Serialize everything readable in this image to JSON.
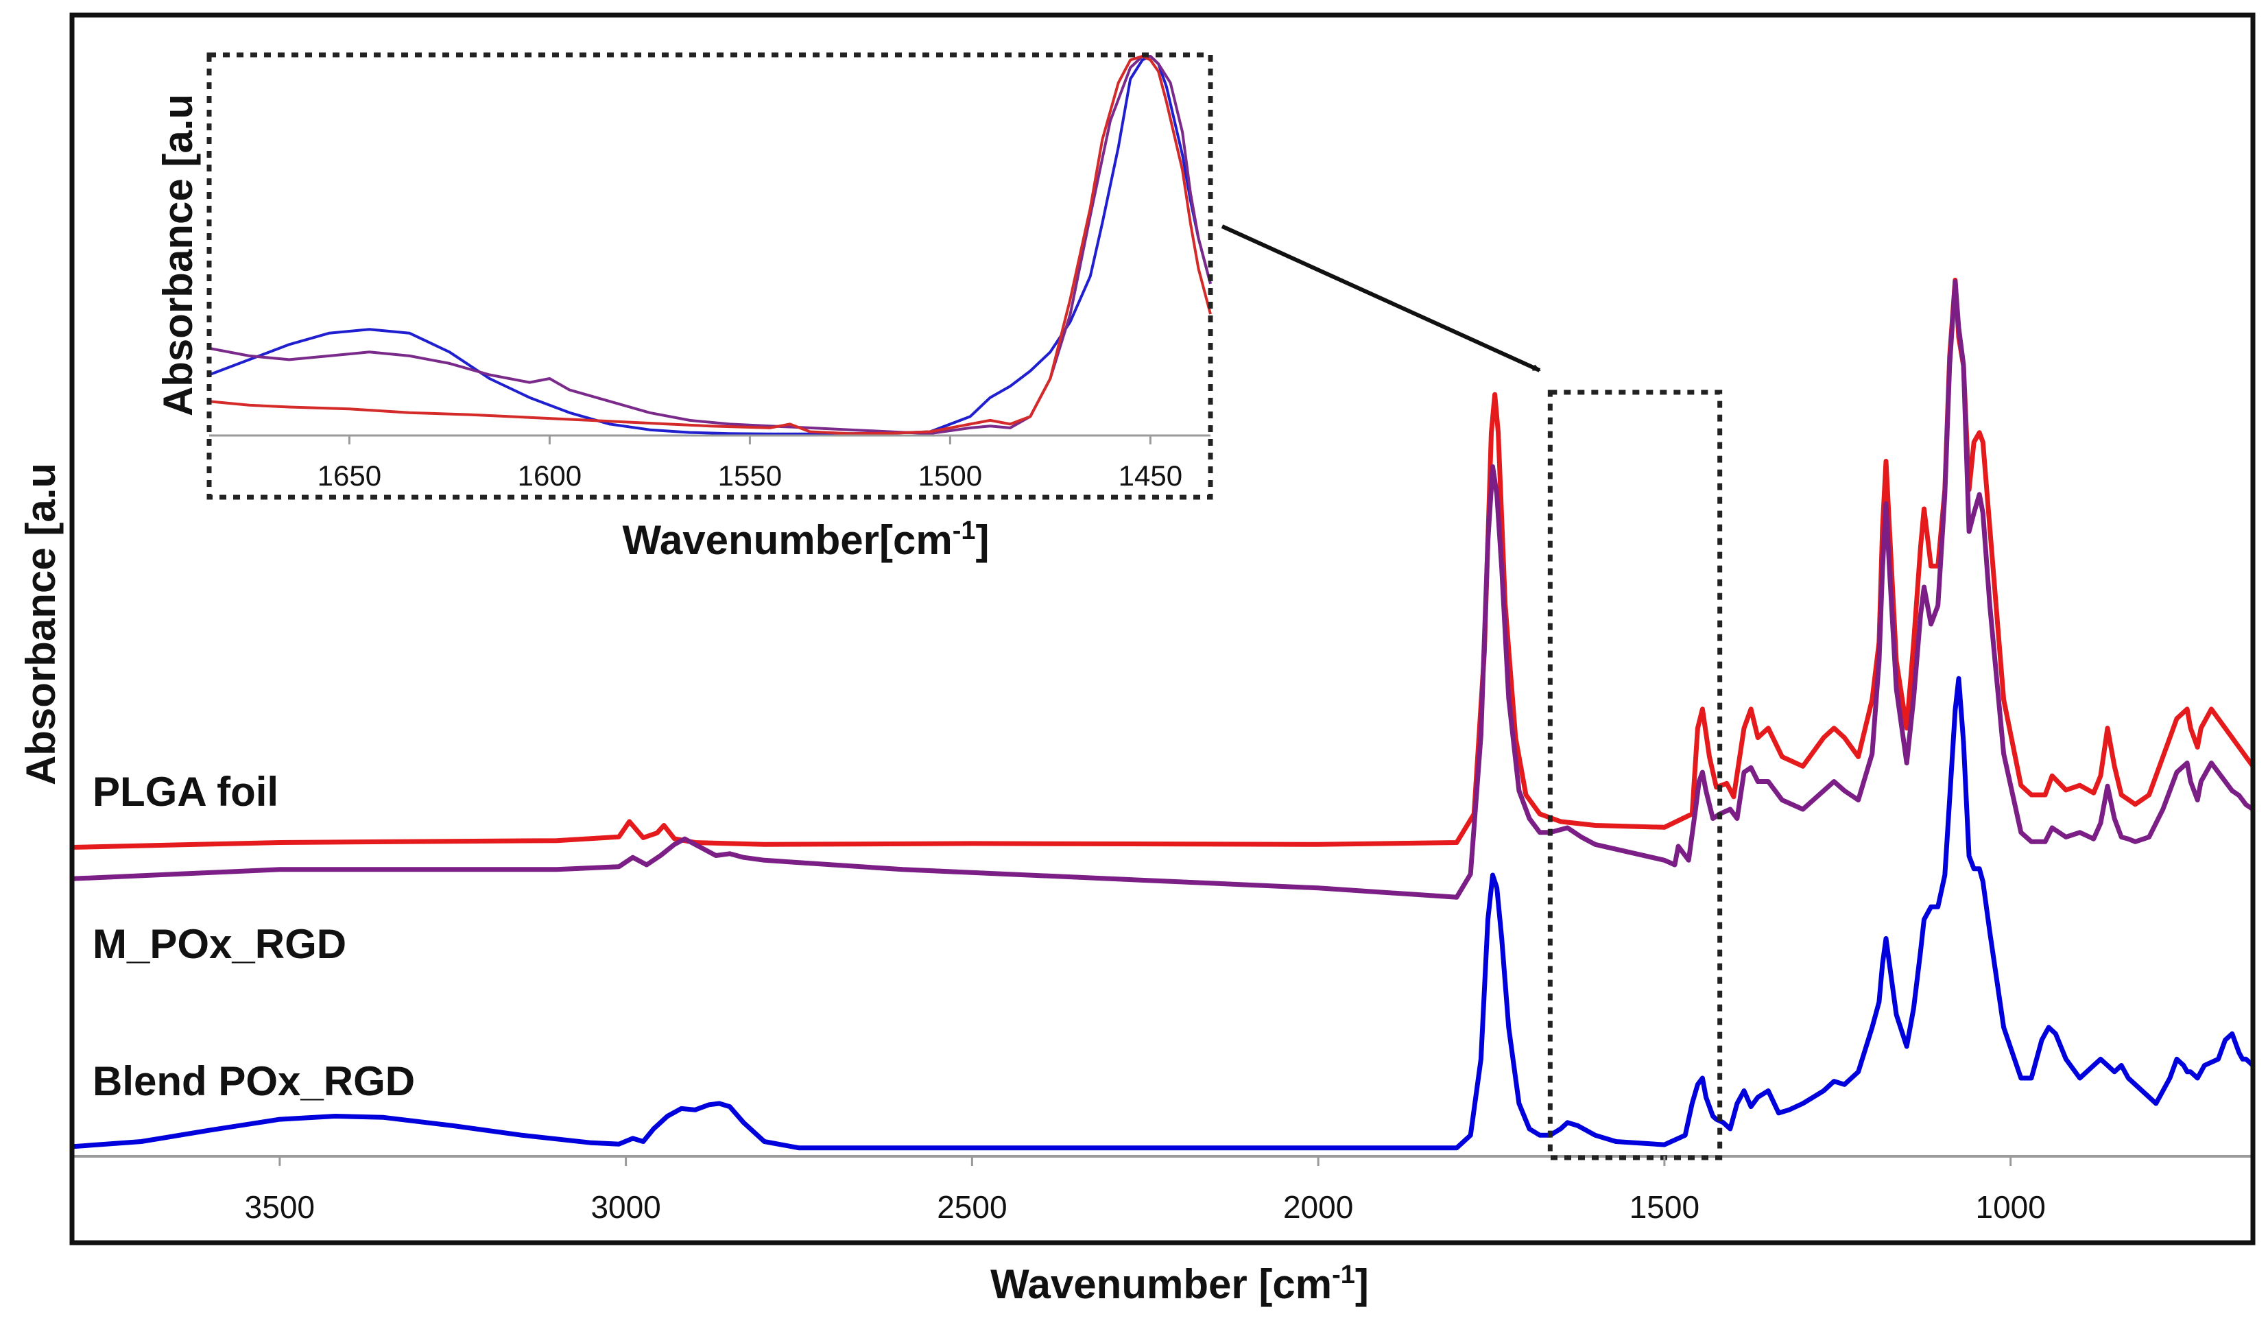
{
  "chart_data": [
    {
      "type": "line",
      "panel": "main",
      "title": "",
      "xlabel": "Wavenumber [cm",
      "xlabel_sup": "-1",
      "xlabel_end": "]",
      "ylabel": "Absorbance [a.u",
      "xlim": [
        3800,
        650
      ],
      "ylim": [
        0,
        1
      ],
      "x_reversed": true,
      "xticks": [
        3500,
        3000,
        2500,
        2000,
        1500,
        1000
      ],
      "xtick_labels": [
        "3500",
        "3000",
        "2500",
        "2000",
        "1500",
        "1000"
      ],
      "highlight_region": [
        1665,
        1420
      ],
      "legend": "inline labels left",
      "series": [
        {
          "name": "PLGA foil",
          "color": "#e41a1c",
          "x": [
            3800,
            3500,
            3100,
            3010,
            2995,
            2975,
            2955,
            2945,
            2930,
            2900,
            2800,
            2500,
            2000,
            1800,
            1775,
            1760,
            1750,
            1745,
            1740,
            1730,
            1715,
            1700,
            1680,
            1650,
            1600,
            1500,
            1460,
            1452,
            1445,
            1435,
            1425,
            1410,
            1400,
            1385,
            1375,
            1365,
            1350,
            1330,
            1300,
            1270,
            1255,
            1240,
            1220,
            1200,
            1190,
            1185,
            1180,
            1175,
            1165,
            1150,
            1140,
            1130,
            1125,
            1115,
            1105,
            1095,
            1088,
            1080,
            1075,
            1068,
            1060,
            1053,
            1045,
            1040,
            1030,
            1010,
            985,
            970,
            950,
            940,
            920,
            900,
            880,
            870,
            860,
            850,
            840,
            830,
            820,
            800,
            780,
            760,
            745,
            740,
            730,
            725,
            710,
            700,
            690,
            680,
            670,
            660,
            650
          ],
          "y": [
            0.345,
            0.35,
            0.352,
            0.356,
            0.372,
            0.355,
            0.36,
            0.368,
            0.354,
            0.35,
            0.348,
            0.349,
            0.348,
            0.35,
            0.38,
            0.55,
            0.78,
            0.82,
            0.78,
            0.6,
            0.46,
            0.4,
            0.38,
            0.372,
            0.368,
            0.366,
            0.38,
            0.47,
            0.49,
            0.44,
            0.408,
            0.412,
            0.398,
            0.47,
            0.49,
            0.46,
            0.47,
            0.44,
            0.43,
            0.46,
            0.47,
            0.46,
            0.44,
            0.5,
            0.56,
            0.68,
            0.75,
            0.68,
            0.54,
            0.47,
            0.56,
            0.66,
            0.7,
            0.64,
            0.64,
            0.72,
            0.86,
            0.94,
            0.88,
            0.85,
            0.72,
            0.77,
            0.78,
            0.77,
            0.68,
            0.5,
            0.41,
            0.4,
            0.4,
            0.42,
            0.405,
            0.41,
            0.402,
            0.42,
            0.47,
            0.43,
            0.4,
            0.395,
            0.39,
            0.4,
            0.44,
            0.48,
            0.49,
            0.47,
            0.45,
            0.47,
            0.49,
            0.48,
            0.47,
            0.46,
            0.45,
            0.44,
            0.43
          ]
        },
        {
          "name": "M_POx_RGD",
          "color": "#7b1f86",
          "x": [
            3800,
            3500,
            3100,
            3010,
            2990,
            2970,
            2950,
            2930,
            2915,
            2900,
            2870,
            2850,
            2830,
            2800,
            2600,
            2000,
            1800,
            1780,
            1765,
            1755,
            1748,
            1742,
            1735,
            1725,
            1710,
            1695,
            1680,
            1665,
            1640,
            1620,
            1600,
            1500,
            1485,
            1480,
            1465,
            1455,
            1450,
            1445,
            1440,
            1430,
            1420,
            1405,
            1395,
            1385,
            1375,
            1365,
            1350,
            1330,
            1300,
            1270,
            1255,
            1240,
            1220,
            1200,
            1190,
            1185,
            1180,
            1175,
            1165,
            1150,
            1140,
            1130,
            1125,
            1115,
            1105,
            1095,
            1088,
            1080,
            1075,
            1068,
            1060,
            1053,
            1045,
            1040,
            1030,
            1010,
            985,
            970,
            950,
            940,
            920,
            900,
            880,
            870,
            860,
            850,
            840,
            830,
            820,
            800,
            780,
            760,
            745,
            740,
            730,
            725,
            710,
            700,
            690,
            680,
            670,
            660,
            650
          ],
          "y": [
            0.225,
            0.235,
            0.235,
            0.238,
            0.248,
            0.24,
            0.25,
            0.262,
            0.268,
            0.262,
            0.25,
            0.252,
            0.248,
            0.245,
            0.235,
            0.215,
            0.205,
            0.23,
            0.38,
            0.59,
            0.67,
            0.64,
            0.56,
            0.42,
            0.32,
            0.29,
            0.275,
            0.275,
            0.28,
            0.27,
            0.262,
            0.245,
            0.24,
            0.26,
            0.245,
            0.3,
            0.33,
            0.34,
            0.32,
            0.29,
            0.295,
            0.3,
            0.29,
            0.34,
            0.345,
            0.33,
            0.33,
            0.31,
            0.3,
            0.32,
            0.33,
            0.32,
            0.31,
            0.36,
            0.46,
            0.56,
            0.63,
            0.56,
            0.43,
            0.35,
            0.42,
            0.51,
            0.54,
            0.5,
            0.52,
            0.64,
            0.78,
            0.87,
            0.82,
            0.78,
            0.6,
            0.62,
            0.64,
            0.62,
            0.52,
            0.36,
            0.275,
            0.265,
            0.265,
            0.28,
            0.27,
            0.275,
            0.268,
            0.285,
            0.325,
            0.29,
            0.27,
            0.268,
            0.265,
            0.27,
            0.3,
            0.34,
            0.35,
            0.33,
            0.31,
            0.33,
            0.35,
            0.34,
            0.33,
            0.32,
            0.315,
            0.305,
            0.3
          ]
        },
        {
          "name": "Blend POx_RGD",
          "color": "#0000dd",
          "x": [
            3800,
            3700,
            3600,
            3500,
            3420,
            3350,
            3250,
            3150,
            3050,
            3010,
            2990,
            2975,
            2960,
            2940,
            2920,
            2900,
            2880,
            2865,
            2850,
            2830,
            2800,
            2750,
            2600,
            2000,
            1800,
            1780,
            1765,
            1755,
            1748,
            1742,
            1735,
            1725,
            1710,
            1695,
            1680,
            1665,
            1650,
            1640,
            1625,
            1600,
            1570,
            1500,
            1470,
            1460,
            1452,
            1445,
            1440,
            1430,
            1425,
            1415,
            1405,
            1395,
            1385,
            1375,
            1365,
            1350,
            1335,
            1320,
            1300,
            1270,
            1255,
            1240,
            1220,
            1200,
            1190,
            1185,
            1180,
            1175,
            1165,
            1150,
            1140,
            1130,
            1125,
            1115,
            1105,
            1095,
            1088,
            1080,
            1075,
            1068,
            1060,
            1053,
            1045,
            1040,
            1030,
            1010,
            985,
            970,
            955,
            945,
            935,
            920,
            900,
            880,
            870,
            860,
            850,
            840,
            830,
            810,
            790,
            770,
            760,
            750,
            745,
            740,
            730,
            720,
            700,
            690,
            680,
            670,
            665,
            660,
            655,
            650
          ],
          "y": [
            0.012,
            0.02,
            0.038,
            0.055,
            0.06,
            0.058,
            0.045,
            0.03,
            0.018,
            0.016,
            0.025,
            0.02,
            0.04,
            0.06,
            0.072,
            0.07,
            0.078,
            0.08,
            0.075,
            0.05,
            0.02,
            0.01,
            0.01,
            0.01,
            0.01,
            0.03,
            0.15,
            0.37,
            0.44,
            0.42,
            0.34,
            0.2,
            0.08,
            0.04,
            0.03,
            0.03,
            0.04,
            0.05,
            0.045,
            0.03,
            0.02,
            0.015,
            0.03,
            0.08,
            0.11,
            0.12,
            0.09,
            0.06,
            0.055,
            0.05,
            0.04,
            0.08,
            0.1,
            0.075,
            0.09,
            0.1,
            0.065,
            0.07,
            0.08,
            0.1,
            0.115,
            0.11,
            0.13,
            0.2,
            0.24,
            0.3,
            0.34,
            0.3,
            0.22,
            0.17,
            0.23,
            0.32,
            0.37,
            0.39,
            0.39,
            0.44,
            0.56,
            0.7,
            0.75,
            0.65,
            0.47,
            0.45,
            0.45,
            0.43,
            0.35,
            0.2,
            0.12,
            0.12,
            0.18,
            0.2,
            0.19,
            0.15,
            0.12,
            0.14,
            0.15,
            0.14,
            0.13,
            0.14,
            0.12,
            0.1,
            0.08,
            0.12,
            0.15,
            0.14,
            0.13,
            0.13,
            0.12,
            0.14,
            0.15,
            0.18,
            0.19,
            0.16,
            0.15,
            0.15,
            0.145,
            0.14
          ]
        }
      ]
    },
    {
      "type": "line",
      "panel": "inset",
      "xlabel": "Wavenumber[cm",
      "xlabel_sup": "-1",
      "xlabel_end": "]",
      "ylabel": "Absorbance [a.u",
      "xlim": [
        1685,
        1435
      ],
      "ylim": [
        0,
        1
      ],
      "x_reversed": true,
      "xticks": [
        1650,
        1600,
        1550,
        1500,
        1450
      ],
      "xtick_labels": [
        "1650",
        "1600",
        "1550",
        "1500",
        "1450"
      ],
      "border": "dotted",
      "series": [
        {
          "name": "Blend POx_RGD",
          "color": "#1f1fcf",
          "x": [
            1685,
            1675,
            1665,
            1655,
            1645,
            1635,
            1625,
            1615,
            1605,
            1595,
            1585,
            1575,
            1565,
            1555,
            1545,
            1535,
            1525,
            1515,
            1505,
            1495,
            1490,
            1485,
            1480,
            1475,
            1470,
            1465,
            1462,
            1458,
            1455,
            1452,
            1450,
            1448,
            1446,
            1442,
            1440,
            1438,
            1435
          ],
          "y": [
            0.16,
            0.2,
            0.24,
            0.27,
            0.28,
            0.27,
            0.22,
            0.15,
            0.1,
            0.06,
            0.03,
            0.015,
            0.008,
            0.005,
            0.004,
            0.004,
            0.005,
            0.006,
            0.01,
            0.05,
            0.1,
            0.13,
            0.17,
            0.22,
            0.3,
            0.42,
            0.56,
            0.76,
            0.94,
            0.99,
            1.0,
            0.98,
            0.92,
            0.74,
            0.62,
            0.52,
            0.4
          ]
        },
        {
          "name": "M_POx_RGD",
          "color": "#7a2a8a",
          "x": [
            1685,
            1675,
            1665,
            1655,
            1645,
            1635,
            1625,
            1615,
            1605,
            1600,
            1595,
            1585,
            1575,
            1565,
            1555,
            1545,
            1535,
            1525,
            1515,
            1505,
            1495,
            1490,
            1485,
            1480,
            1475,
            1470,
            1465,
            1460,
            1455,
            1452,
            1450,
            1448,
            1445,
            1442,
            1440,
            1438,
            1435
          ],
          "y": [
            0.23,
            0.21,
            0.2,
            0.21,
            0.22,
            0.21,
            0.19,
            0.16,
            0.14,
            0.15,
            0.12,
            0.09,
            0.06,
            0.04,
            0.03,
            0.025,
            0.02,
            0.015,
            0.01,
            0.005,
            0.02,
            0.025,
            0.02,
            0.05,
            0.15,
            0.32,
            0.58,
            0.83,
            0.97,
            1.0,
            1.0,
            0.98,
            0.93,
            0.8,
            0.64,
            0.52,
            0.4
          ]
        },
        {
          "name": "PLGA foil",
          "color": "#d42a2a",
          "x": [
            1685,
            1675,
            1665,
            1650,
            1635,
            1620,
            1600,
            1580,
            1560,
            1545,
            1540,
            1535,
            1525,
            1515,
            1505,
            1495,
            1490,
            1485,
            1480,
            1475,
            1470,
            1465,
            1462,
            1458,
            1455,
            1452,
            1450,
            1448,
            1446,
            1442,
            1440,
            1438,
            1435
          ],
          "y": [
            0.09,
            0.08,
            0.075,
            0.07,
            0.06,
            0.055,
            0.045,
            0.035,
            0.025,
            0.02,
            0.03,
            0.01,
            0.005,
            0.006,
            0.01,
            0.03,
            0.04,
            0.03,
            0.05,
            0.15,
            0.36,
            0.6,
            0.78,
            0.93,
            0.99,
            1.0,
            0.99,
            0.96,
            0.88,
            0.7,
            0.56,
            0.44,
            0.32
          ]
        }
      ]
    }
  ]
}
